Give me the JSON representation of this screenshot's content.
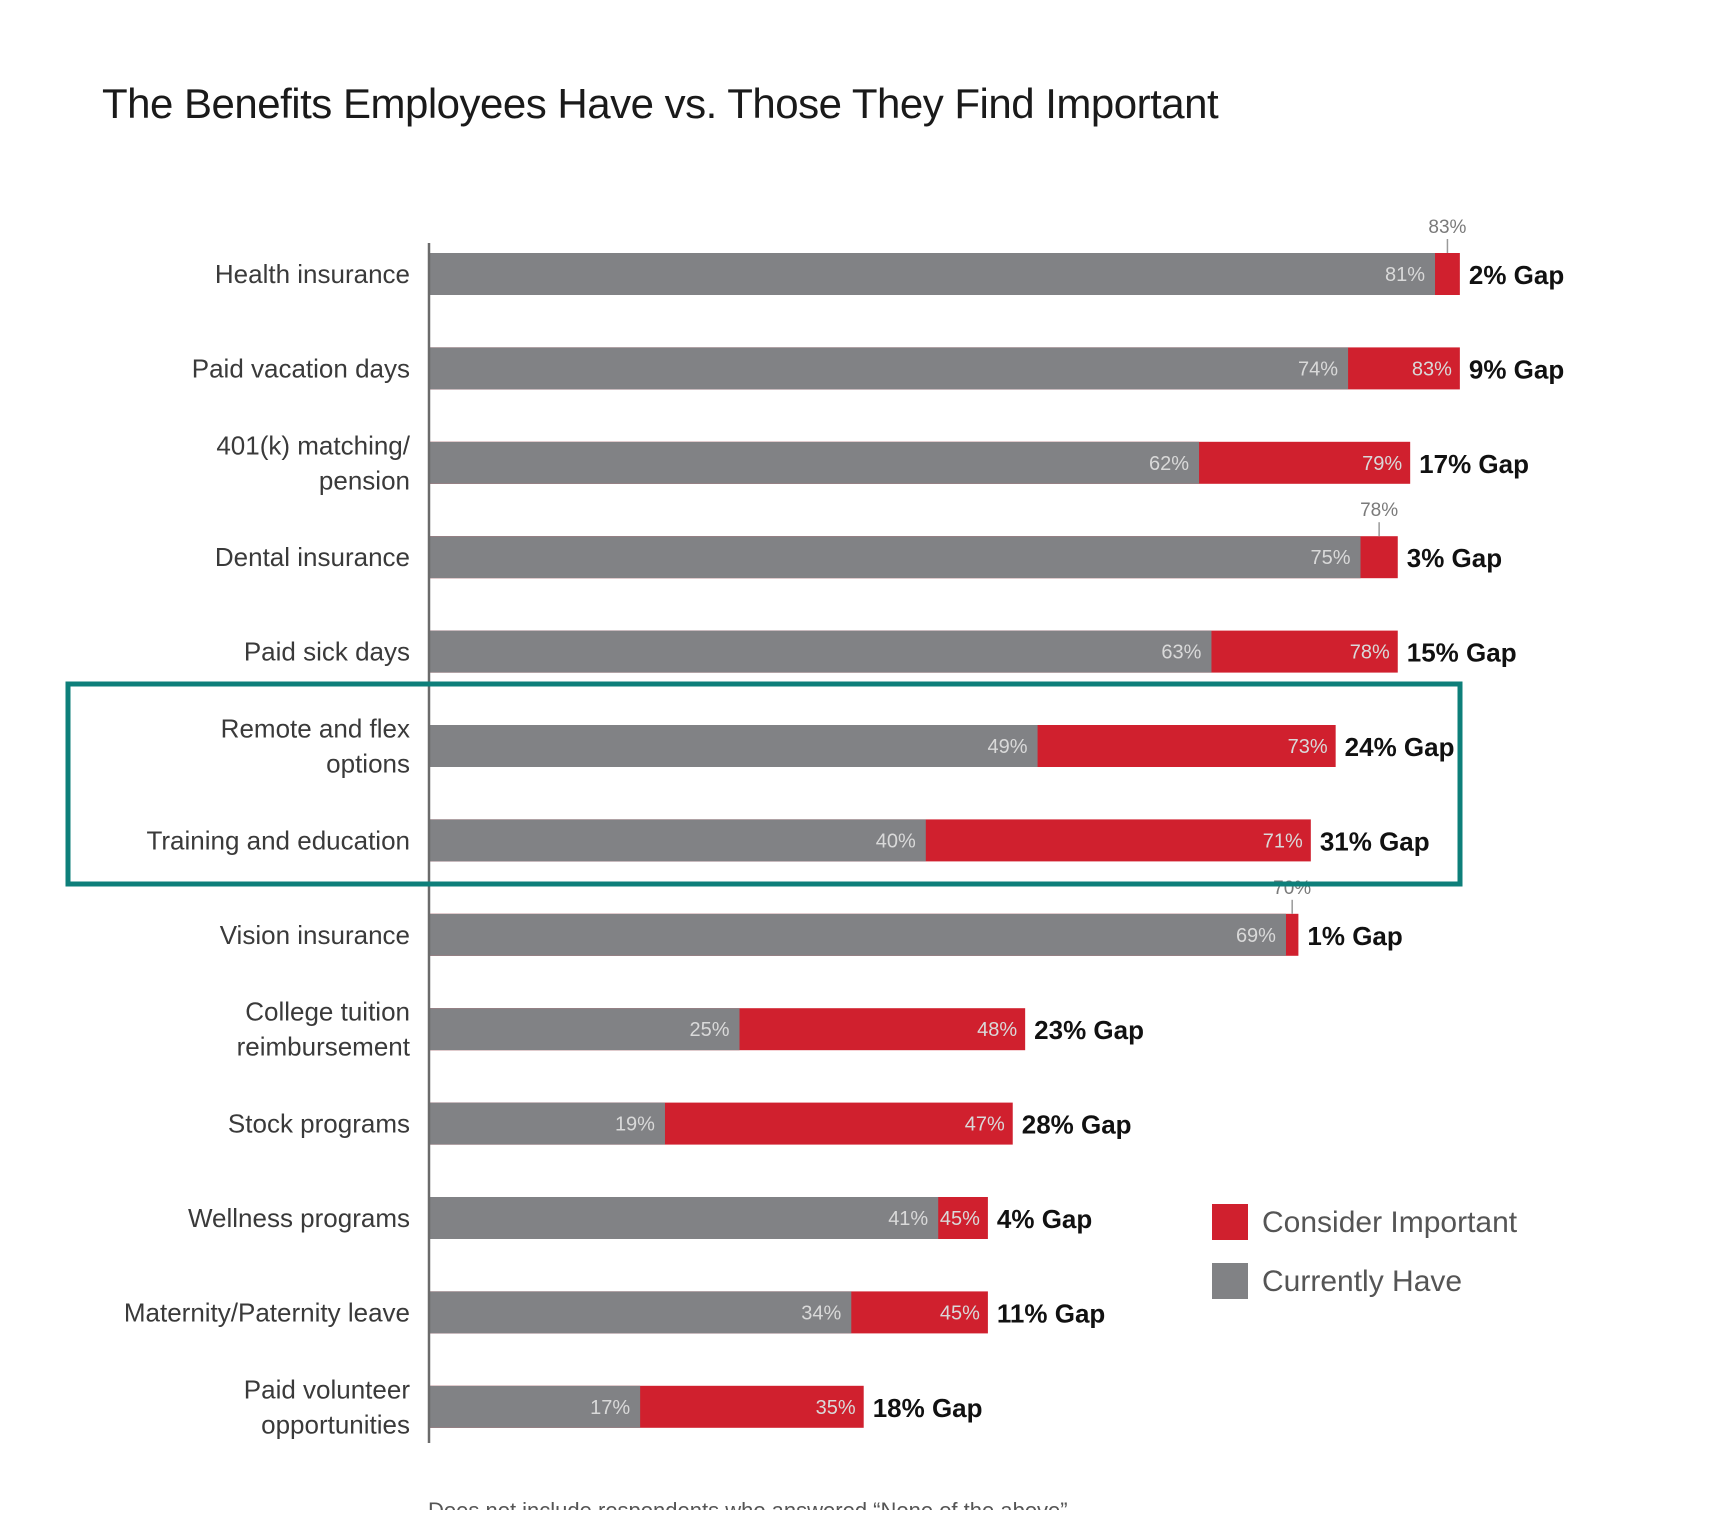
{
  "chart_data": {
    "type": "bar",
    "title": "The Benefits Employees Have vs. Those They Find Important",
    "categories": [
      "Health insurance",
      "Paid vacation days",
      "401(k) matching/ pension",
      "Dental insurance",
      "Paid sick days",
      "Remote and flex options",
      "Training and education",
      "Vision insurance",
      "College tuition reimbursement",
      "Stock programs",
      "Wellness programs",
      "Maternity/Paternity leave",
      "Paid volunteer opportunities"
    ],
    "category_lines": [
      [
        "Health insurance"
      ],
      [
        "Paid vacation days"
      ],
      [
        "401(k) matching/",
        "pension"
      ],
      [
        "Dental insurance"
      ],
      [
        "Paid sick days"
      ],
      [
        "Remote and flex",
        "options"
      ],
      [
        "Training and education"
      ],
      [
        "Vision insurance"
      ],
      [
        "College tuition",
        "reimbursement"
      ],
      [
        "Stock programs"
      ],
      [
        "Wellness programs"
      ],
      [
        "Maternity/Paternity leave"
      ],
      [
        "Paid volunteer",
        "opportunities"
      ]
    ],
    "series": [
      {
        "name": "Currently Have",
        "color": "#818285",
        "values": [
          81,
          74,
          62,
          75,
          63,
          49,
          40,
          69,
          25,
          19,
          41,
          34,
          17
        ],
        "labels": [
          "81%",
          "74%",
          "62%",
          "75%",
          "63%",
          "49%",
          "40%",
          "69%",
          "25%",
          "19%",
          "41%",
          "34%",
          "17%"
        ]
      },
      {
        "name": "Consider Important",
        "color": "#d0202e",
        "values": [
          83,
          83,
          79,
          78,
          78,
          73,
          71,
          70,
          48,
          47,
          45,
          45,
          35
        ],
        "labels": [
          "83%",
          "83%",
          "79%",
          "78%",
          "78%",
          "73%",
          "71%",
          "70%",
          "48%",
          "47%",
          "45%",
          "45%",
          "35%"
        ]
      }
    ],
    "gap_labels": [
      "2% Gap",
      "9% Gap",
      "17% Gap",
      "3% Gap",
      "15% Gap",
      "24% Gap",
      "31% Gap",
      "1% Gap",
      "23% Gap",
      "28% Gap",
      "4% Gap",
      "11% Gap",
      "18% Gap"
    ],
    "important_label_outside": [
      true,
      false,
      false,
      true,
      false,
      false,
      false,
      true,
      false,
      false,
      false,
      false,
      false
    ],
    "highlighted_categories": [
      "Remote and flex options",
      "Training and education"
    ],
    "highlight_color": "#0e7f7a",
    "legend": {
      "position": "bottom-right",
      "items": [
        {
          "label": "Consider Important",
          "color": "#d0202e"
        },
        {
          "label": "Currently Have",
          "color": "#818285"
        }
      ]
    },
    "xlim": [
      0,
      100
    ],
    "grid": false,
    "footnote": "Does not include respondents who answered “None of the above”."
  }
}
